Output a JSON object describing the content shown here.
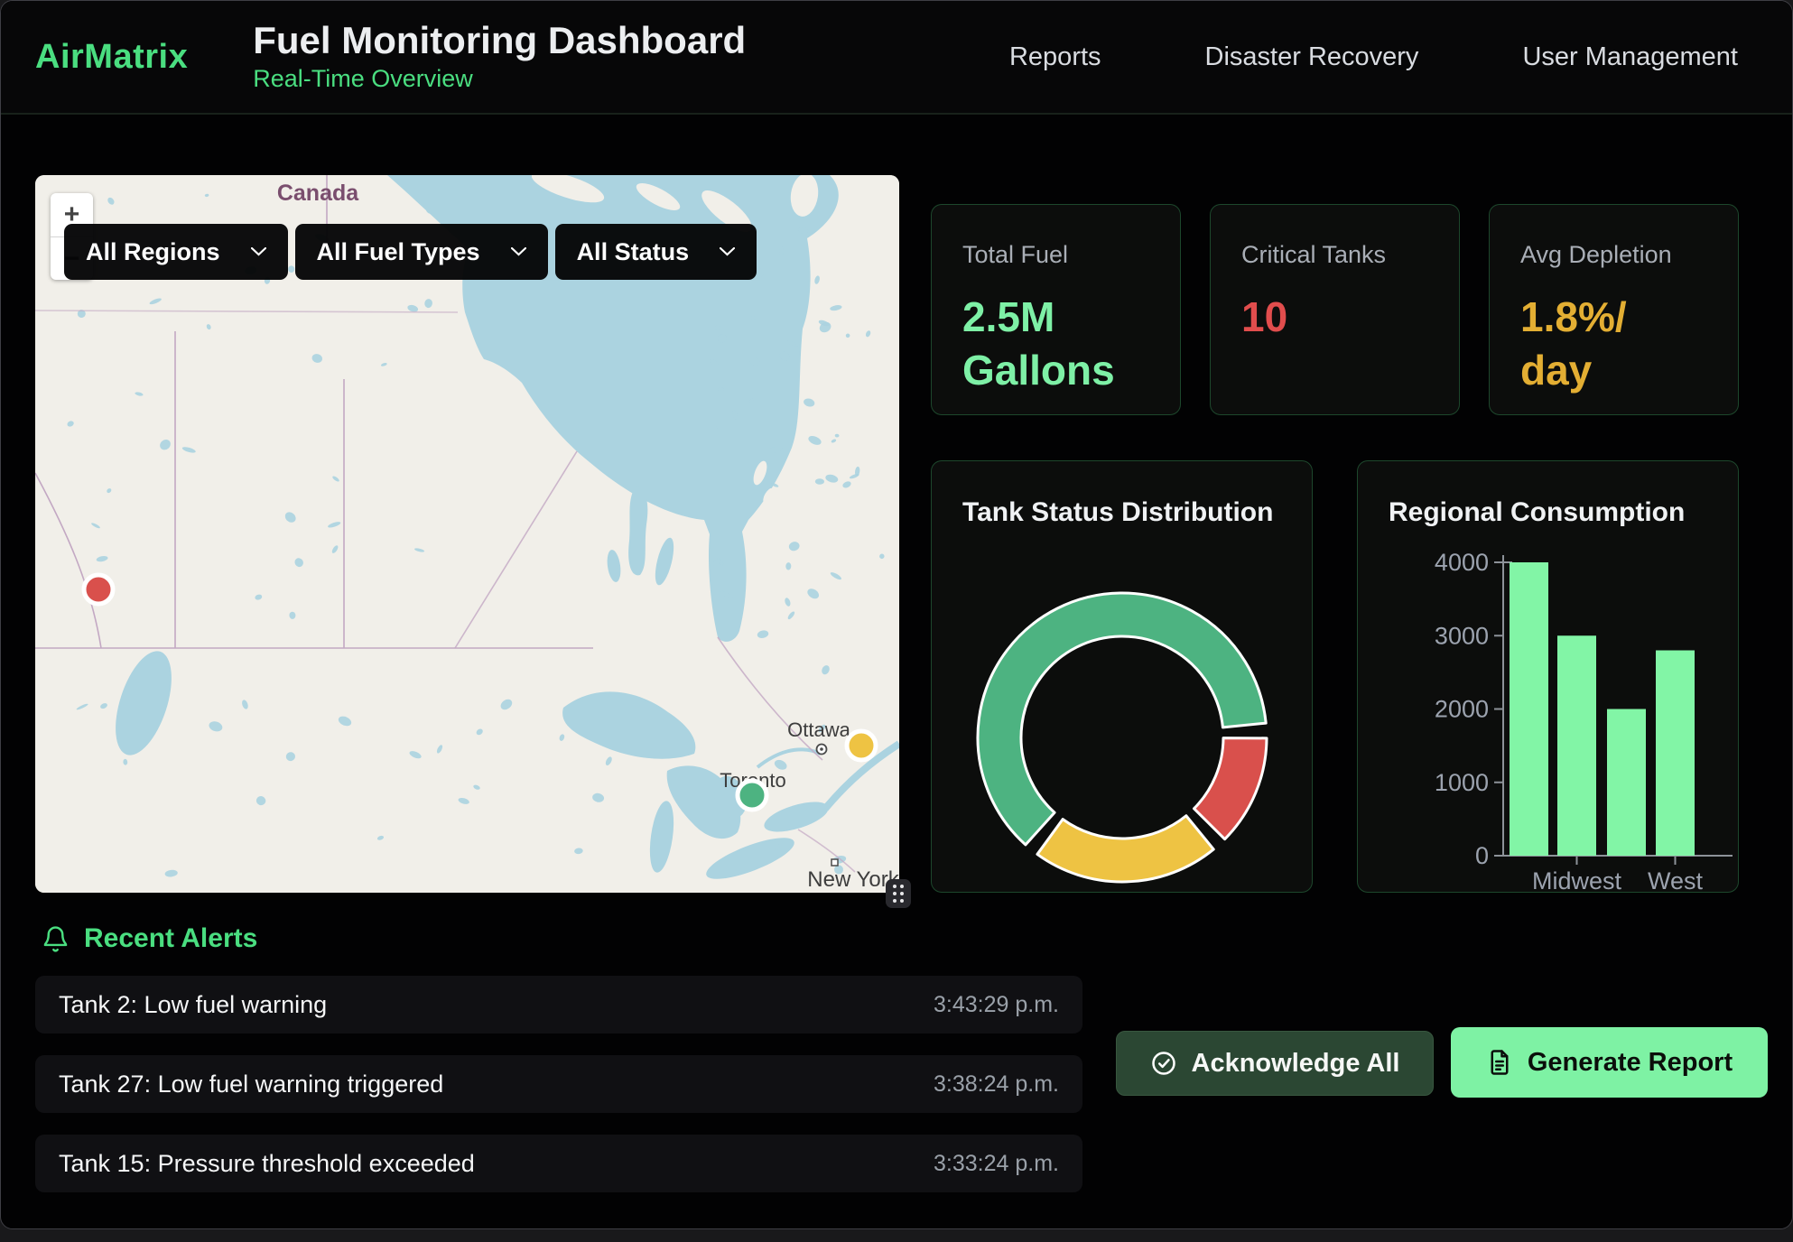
{
  "header": {
    "logo": "AirMatrix",
    "title": "Fuel Monitoring Dashboard",
    "subtitle": "Real-Time Overview",
    "nav": [
      {
        "label": "Reports"
      },
      {
        "label": "Disaster Recovery"
      },
      {
        "label": "User Management"
      }
    ]
  },
  "map": {
    "zoom_control": {
      "zoom_in": "+",
      "zoom_out": "−"
    },
    "filters": [
      {
        "value": "All Regions"
      },
      {
        "value": "All Fuel Types"
      },
      {
        "value": "All Status"
      }
    ],
    "labels": {
      "country": "Canada",
      "city_ottawa": "Ottawa",
      "city_toronto": "Toronto",
      "city_new_york": "New York"
    },
    "markers": [
      {
        "status": "critical",
        "color": "#d9504c"
      },
      {
        "status": "warning",
        "color": "#eec343",
        "near": "Ottawa"
      },
      {
        "status": "normal",
        "color": "#4db381",
        "near": "Toronto"
      }
    ]
  },
  "stats": [
    {
      "label": "Total Fuel",
      "value": "2.5M\nGallons",
      "color": "#7ef0a6"
    },
    {
      "label": "Critical Tanks",
      "value": "10",
      "color": "#e14d4d"
    },
    {
      "label": "Avg Depletion",
      "value": "1.8%/\nday",
      "color": "#e3ae33"
    }
  ],
  "chart_data": [
    {
      "id": "tank_status",
      "type": "donut",
      "title": "Tank Status Distribution",
      "segments": [
        {
          "label": "normal",
          "value": 65,
          "color": "#4db381"
        },
        {
          "label": "critical",
          "value": 13,
          "color": "#d9504c"
        },
        {
          "label": "warning",
          "value": 22,
          "color": "#eec343"
        }
      ],
      "start_angle_deg": 222,
      "gap_deg": 6,
      "legend": false,
      "segment_border_color": "#ffffff"
    },
    {
      "id": "regional_consumption",
      "type": "bar",
      "title": "Regional Consumption",
      "values": [
        4000,
        3000,
        2000,
        2800
      ],
      "visible_x_tick_labels": [
        {
          "label": "Midwest",
          "bar_index": 1
        },
        {
          "label": "West",
          "bar_index": 3
        }
      ],
      "y_ticks": [
        0,
        1000,
        2000,
        3000,
        4000
      ],
      "ylim": [
        0,
        4000
      ],
      "bar_color": "#82f5a6",
      "axis_color": "#8d9299",
      "tick_label_color": "#9ca3af",
      "grid": false,
      "legend_position": "none"
    }
  ],
  "alerts": {
    "heading": "Recent Alerts",
    "items": [
      {
        "message": "Tank 2: Low fuel warning",
        "time": "3:43:29 p.m."
      },
      {
        "message": "Tank 27: Low fuel warning triggered",
        "time": "3:38:24 p.m."
      },
      {
        "message": "Tank 15: Pressure threshold exceeded",
        "time": "3:33:24 p.m."
      }
    ]
  },
  "actions": {
    "acknowledge_all": "Acknowledge All",
    "generate_report": "Generate Report"
  },
  "colors": {
    "accent_green": "#4ade80",
    "value_green": "#7ef0a6",
    "alert_red": "#e14d4d",
    "warn_amber": "#e3ae33",
    "button_dark_green": "#2b4733",
    "button_bright_green": "#7ef2a4",
    "map_water": "#abd3e0",
    "map_land": "#f1efe9"
  }
}
